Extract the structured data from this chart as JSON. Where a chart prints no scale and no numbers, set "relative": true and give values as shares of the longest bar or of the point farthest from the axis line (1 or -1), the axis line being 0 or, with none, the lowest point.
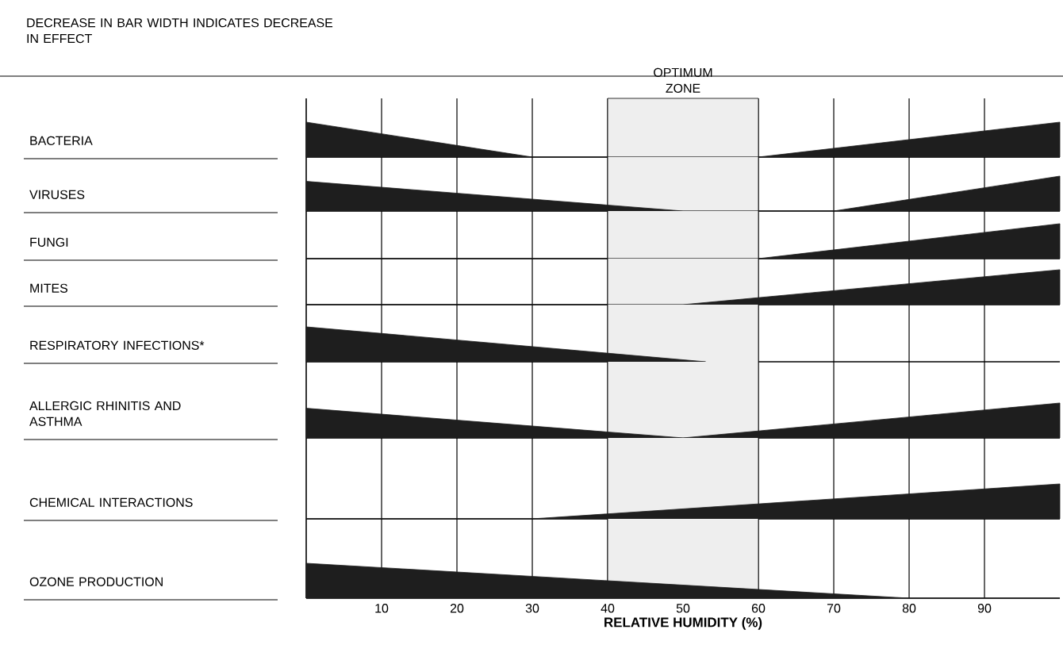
{
  "chart_data": [
    {
      "type": "area",
      "relative": true,
      "title": "DECREASE IN BAR WIDTH INDICATES DECREASE IN EFFECT",
      "ylabel": "BACTERIA",
      "xlim": [
        0,
        100
      ],
      "xticks": [
        10,
        20,
        30,
        40,
        50,
        60,
        70,
        80,
        90
      ],
      "grid": "x",
      "tick_labels": false,
      "series": [
        {
          "color": "#1e1e1e",
          "x": [
            0,
            30,
            60,
            100
          ],
          "values": [
            1,
            0,
            0,
            1
          ]
        }
      ],
      "bands": [
        {
          "axis": "x",
          "from": 40,
          "to": 60,
          "color": "#eeeeee",
          "label": "OPTIMUM ZONE"
        }
      ]
    },
    {
      "type": "area",
      "relative": true,
      "ylabel": "VIRUSES",
      "xlim": [
        0,
        100
      ],
      "xticks": [
        10,
        20,
        30,
        40,
        50,
        60,
        70,
        80,
        90
      ],
      "grid": "x",
      "tick_labels": false,
      "series": [
        {
          "color": "#1e1e1e",
          "x": [
            0,
            50,
            70,
            100
          ],
          "values": [
            0.85,
            0,
            0,
            1
          ]
        }
      ],
      "bands": [
        {
          "axis": "x",
          "from": 40,
          "to": 60,
          "color": "#eeeeee"
        }
      ]
    },
    {
      "type": "area",
      "relative": true,
      "ylabel": "FUNGI",
      "xlim": [
        0,
        100
      ],
      "xticks": [
        10,
        20,
        30,
        40,
        50,
        60,
        70,
        80,
        90
      ],
      "grid": "x",
      "tick_labels": false,
      "series": [
        {
          "color": "#1e1e1e",
          "x": [
            0,
            60,
            100
          ],
          "values": [
            0,
            0,
            1
          ]
        }
      ],
      "bands": [
        {
          "axis": "x",
          "from": 40,
          "to": 60,
          "color": "#eeeeee"
        }
      ]
    },
    {
      "type": "area",
      "relative": true,
      "ylabel": "MITES",
      "xlim": [
        0,
        100
      ],
      "xticks": [
        10,
        20,
        30,
        40,
        50,
        60,
        70,
        80,
        90
      ],
      "grid": "x",
      "tick_labels": false,
      "series": [
        {
          "color": "#1e1e1e",
          "x": [
            0,
            50,
            100
          ],
          "values": [
            0,
            0,
            1
          ]
        }
      ],
      "bands": [
        {
          "axis": "x",
          "from": 40,
          "to": 60,
          "color": "#eeeeee"
        }
      ]
    },
    {
      "type": "area",
      "relative": true,
      "ylabel": "RESPIRATORY INFECTIONS*",
      "xlim": [
        0,
        100
      ],
      "xticks": [
        10,
        20,
        30,
        40,
        50,
        60,
        70,
        80,
        90
      ],
      "grid": "x",
      "tick_labels": false,
      "series": [
        {
          "color": "#1e1e1e",
          "x": [
            0,
            53
          ],
          "values": [
            1,
            0
          ]
        }
      ],
      "bands": [
        {
          "axis": "x",
          "from": 40,
          "to": 60,
          "color": "#eeeeee"
        }
      ]
    },
    {
      "type": "area",
      "relative": true,
      "ylabel": "ALLERGIC RHINITIS AND ASTHMA",
      "xlim": [
        0,
        100
      ],
      "xticks": [
        10,
        20,
        30,
        40,
        50,
        60,
        70,
        80,
        90
      ],
      "grid": "x",
      "tick_labels": false,
      "series": [
        {
          "color": "#1e1e1e",
          "x": [
            0,
            50,
            100
          ],
          "values": [
            0.85,
            0,
            1
          ]
        }
      ],
      "bands": [
        {
          "axis": "x",
          "from": 40,
          "to": 60,
          "color": "#eeeeee"
        }
      ]
    },
    {
      "type": "area",
      "relative": true,
      "ylabel": "CHEMICAL INTERACTIONS",
      "xlim": [
        0,
        100
      ],
      "xticks": [
        10,
        20,
        30,
        40,
        50,
        60,
        70,
        80,
        90
      ],
      "grid": "x",
      "tick_labels": false,
      "series": [
        {
          "color": "#1e1e1e",
          "x": [
            0,
            30,
            100
          ],
          "values": [
            0,
            0,
            1
          ]
        }
      ],
      "bands": [
        {
          "axis": "x",
          "from": 40,
          "to": 60,
          "color": "#eeeeee"
        }
      ]
    },
    {
      "type": "area",
      "relative": true,
      "ylabel": "OZONE PRODUCTION",
      "xlabel": "RELATIVE HUMIDITY (%)",
      "xlim": [
        0,
        100
      ],
      "xticks": [
        10,
        20,
        30,
        40,
        50,
        60,
        70,
        80,
        90
      ],
      "grid": "x",
      "tick_labels": "x",
      "series": [
        {
          "color": "#1e1e1e",
          "x": [
            0,
            80,
            100
          ],
          "values": [
            1,
            0,
            0
          ]
        }
      ],
      "bands": [
        {
          "axis": "x",
          "from": 40,
          "to": 60,
          "color": "#eeeeee"
        }
      ]
    }
  ]
}
